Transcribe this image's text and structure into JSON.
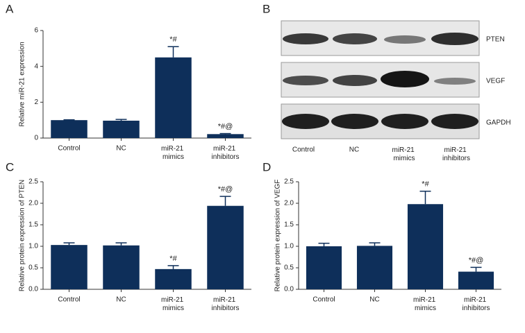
{
  "chart_data": [
    {
      "type": "bar",
      "panel": "A",
      "ylabel": "Relative miR-21 expression",
      "categories": [
        "Control",
        "NC",
        "miR-21 mimics",
        "miR-21 inhibitors"
      ],
      "values": [
        1.0,
        0.97,
        4.5,
        0.22
      ],
      "errors": [
        0.02,
        0.07,
        0.6,
        0.03
      ],
      "annotations": [
        null,
        null,
        "*#",
        "*#@"
      ],
      "color": "#0e2f5a",
      "ylim": [
        0,
        6
      ],
      "yticks": [
        0,
        2,
        4,
        6
      ]
    },
    {
      "type": "bar",
      "panel": "C",
      "ylabel": "Relative protein expression of PTEN",
      "categories": [
        "Control",
        "NC",
        "miR-21 mimics",
        "miR-21 inhibitors"
      ],
      "values": [
        1.03,
        1.02,
        0.47,
        1.94
      ],
      "errors": [
        0.05,
        0.06,
        0.08,
        0.22
      ],
      "annotations": [
        null,
        null,
        "*#",
        "*#@"
      ],
      "color": "#0e2f5a",
      "ylim": [
        0,
        2.5
      ],
      "yticks": [
        {
          "value": 0,
          "label": "0.0"
        },
        0.5,
        {
          "value": 1,
          "label": "1.0"
        },
        1.5,
        {
          "value": 2,
          "label": "2.0"
        },
        2.5
      ]
    },
    {
      "type": "bar",
      "panel": "D",
      "ylabel": "Relative protein expression of VEGF",
      "categories": [
        "Control",
        "NC",
        "miR-21 mimics",
        "miR-21 inhibitors"
      ],
      "values": [
        1.0,
        1.01,
        1.98,
        0.41
      ],
      "errors": [
        0.07,
        0.07,
        0.3,
        0.1
      ],
      "annotations": [
        null,
        null,
        "*#",
        "*#@"
      ],
      "color": "#0e2f5a",
      "ylim": [
        0,
        2.5
      ],
      "yticks": [
        {
          "value": 0,
          "label": "0.0"
        },
        0.5,
        {
          "value": 1,
          "label": "1.0"
        },
        1.5,
        {
          "value": 2,
          "label": "2.0"
        },
        2.5
      ]
    }
  ],
  "blot": {
    "panel": "B",
    "rows": [
      "PTEN",
      "VEGF",
      "GAPDH"
    ],
    "categories": [
      "Control",
      "NC",
      "miR-21 mimics",
      "miR-21 inhibitors"
    ]
  }
}
